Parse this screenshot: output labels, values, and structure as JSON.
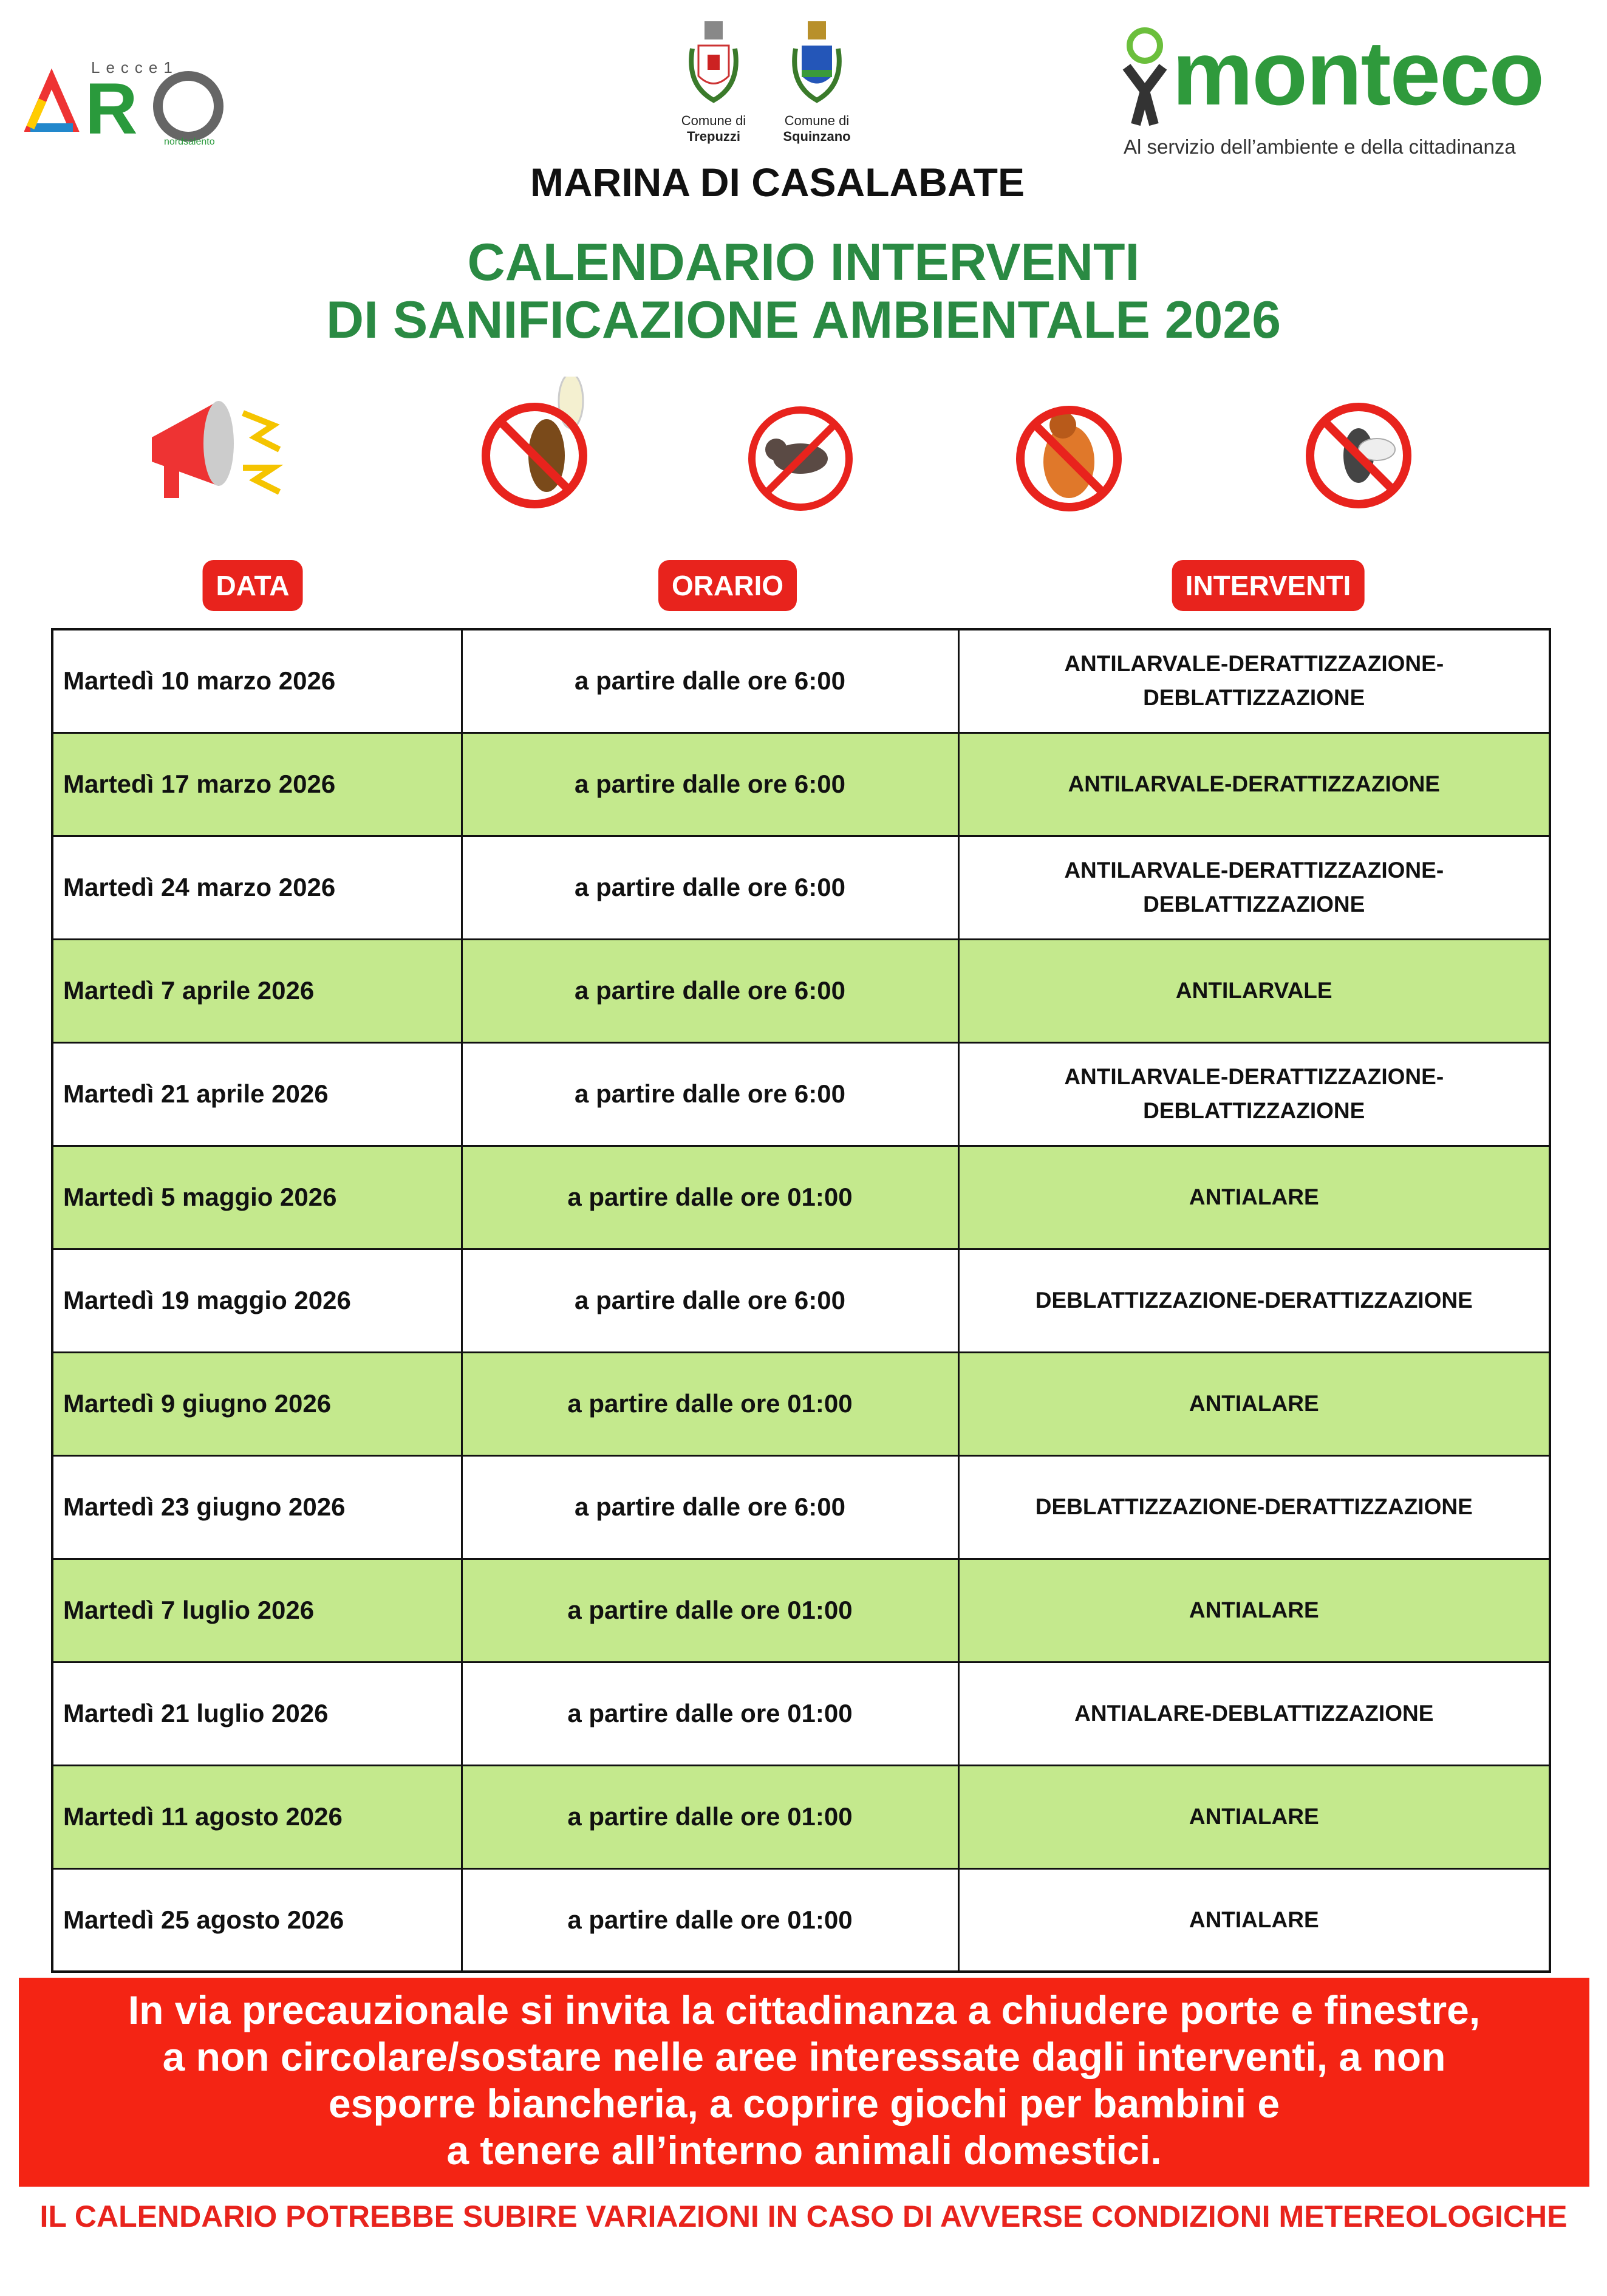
{
  "header": {
    "aro_logo": {
      "text": "ARO",
      "top": "Lecce1",
      "sub": "nordsalento"
    },
    "coats": [
      {
        "label": "Comune di",
        "name": "Trepuzzi"
      },
      {
        "label": "Comune di",
        "name": "Squinzano"
      }
    ],
    "monteco": {
      "name": "monteco",
      "tagline": "Al servizio dell’ambiente e della cittadinanza"
    },
    "place": "MARINA DI CASALABATE",
    "title_line1": "CALENDARIO INTERVENTI",
    "title_line2": "DI SANIFICAZIONE AMBIENTALE 2026"
  },
  "icons": [
    "megaphone-icon",
    "no-mosquito-icon",
    "no-rat-icon",
    "no-cockroach-icon",
    "no-fly-icon"
  ],
  "colors": {
    "green": "#2a8a43",
    "red": "#e8231d",
    "row_green": "#c4e98d",
    "warning_bg": "#f42414"
  },
  "columns": [
    "DATA",
    "ORARIO",
    "INTERVENTI"
  ],
  "rows": [
    {
      "data": "Martedì 10 marzo 2026",
      "orario": "a partire dalle ore 6:00",
      "interventi": "ANTILARVALE-DERATTIZZAZIONE-DEBLATTIZZAZIONE"
    },
    {
      "data": "Martedì 17 marzo 2026",
      "orario": "a partire dalle ore 6:00",
      "interventi": "ANTILARVALE-DERATTIZZAZIONE"
    },
    {
      "data": "Martedì 24 marzo 2026",
      "orario": "a partire dalle ore 6:00",
      "interventi": "ANTILARVALE-DERATTIZZAZIONE-DEBLATTIZZAZIONE"
    },
    {
      "data": "Martedì 7 aprile 2026",
      "orario": "a partire dalle ore 6:00",
      "interventi": "ANTILARVALE"
    },
    {
      "data": "Martedì 21 aprile 2026",
      "orario": "a partire dalle ore 6:00",
      "interventi": "ANTILARVALE-DERATTIZZAZIONE-DEBLATTIZZAZIONE"
    },
    {
      "data": "Martedì 5 maggio 2026",
      "orario": "a partire dalle ore 01:00",
      "interventi": "ANTIALARE"
    },
    {
      "data": "Martedì 19 maggio 2026",
      "orario": "a partire dalle ore 6:00",
      "interventi": "DEBLATTIZZAZIONE-DERATTIZZAZIONE"
    },
    {
      "data": "Martedì 9 giugno 2026",
      "orario": "a partire dalle ore 01:00",
      "interventi": "ANTIALARE"
    },
    {
      "data": "Martedì 23 giugno 2026",
      "orario": "a partire dalle ore 6:00",
      "interventi": "DEBLATTIZZAZIONE-DERATTIZZAZIONE"
    },
    {
      "data": "Martedì 7 luglio 2026",
      "orario": "a partire dalle ore 01:00",
      "interventi": "ANTIALARE"
    },
    {
      "data": "Martedì 21 luglio 2026",
      "orario": "a partire dalle ore 01:00",
      "interventi": "ANTIALARE-DEBLATTIZZAZIONE"
    },
    {
      "data": "Martedì 11 agosto 2026",
      "orario": "a partire dalle ore 01:00",
      "interventi": "ANTIALARE"
    },
    {
      "data": "Martedì 25 agosto 2026",
      "orario": "a partire dalle ore 01:00",
      "interventi": "ANTIALARE"
    }
  ],
  "warning": [
    "In via precauzionale si invita la cittadinanza a chiudere porte e finestre,",
    "a non circolare/sostare nelle aree interessate dagli interventi, a non",
    "esporre biancheria, a coprire giochi per bambini e",
    "a tenere all’interno animali domestici."
  ],
  "footer": "IL CALENDARIO POTREBBE SUBIRE VARIAZIONI IN CASO DI AVVERSE CONDIZIONI METEREOLOGICHE"
}
